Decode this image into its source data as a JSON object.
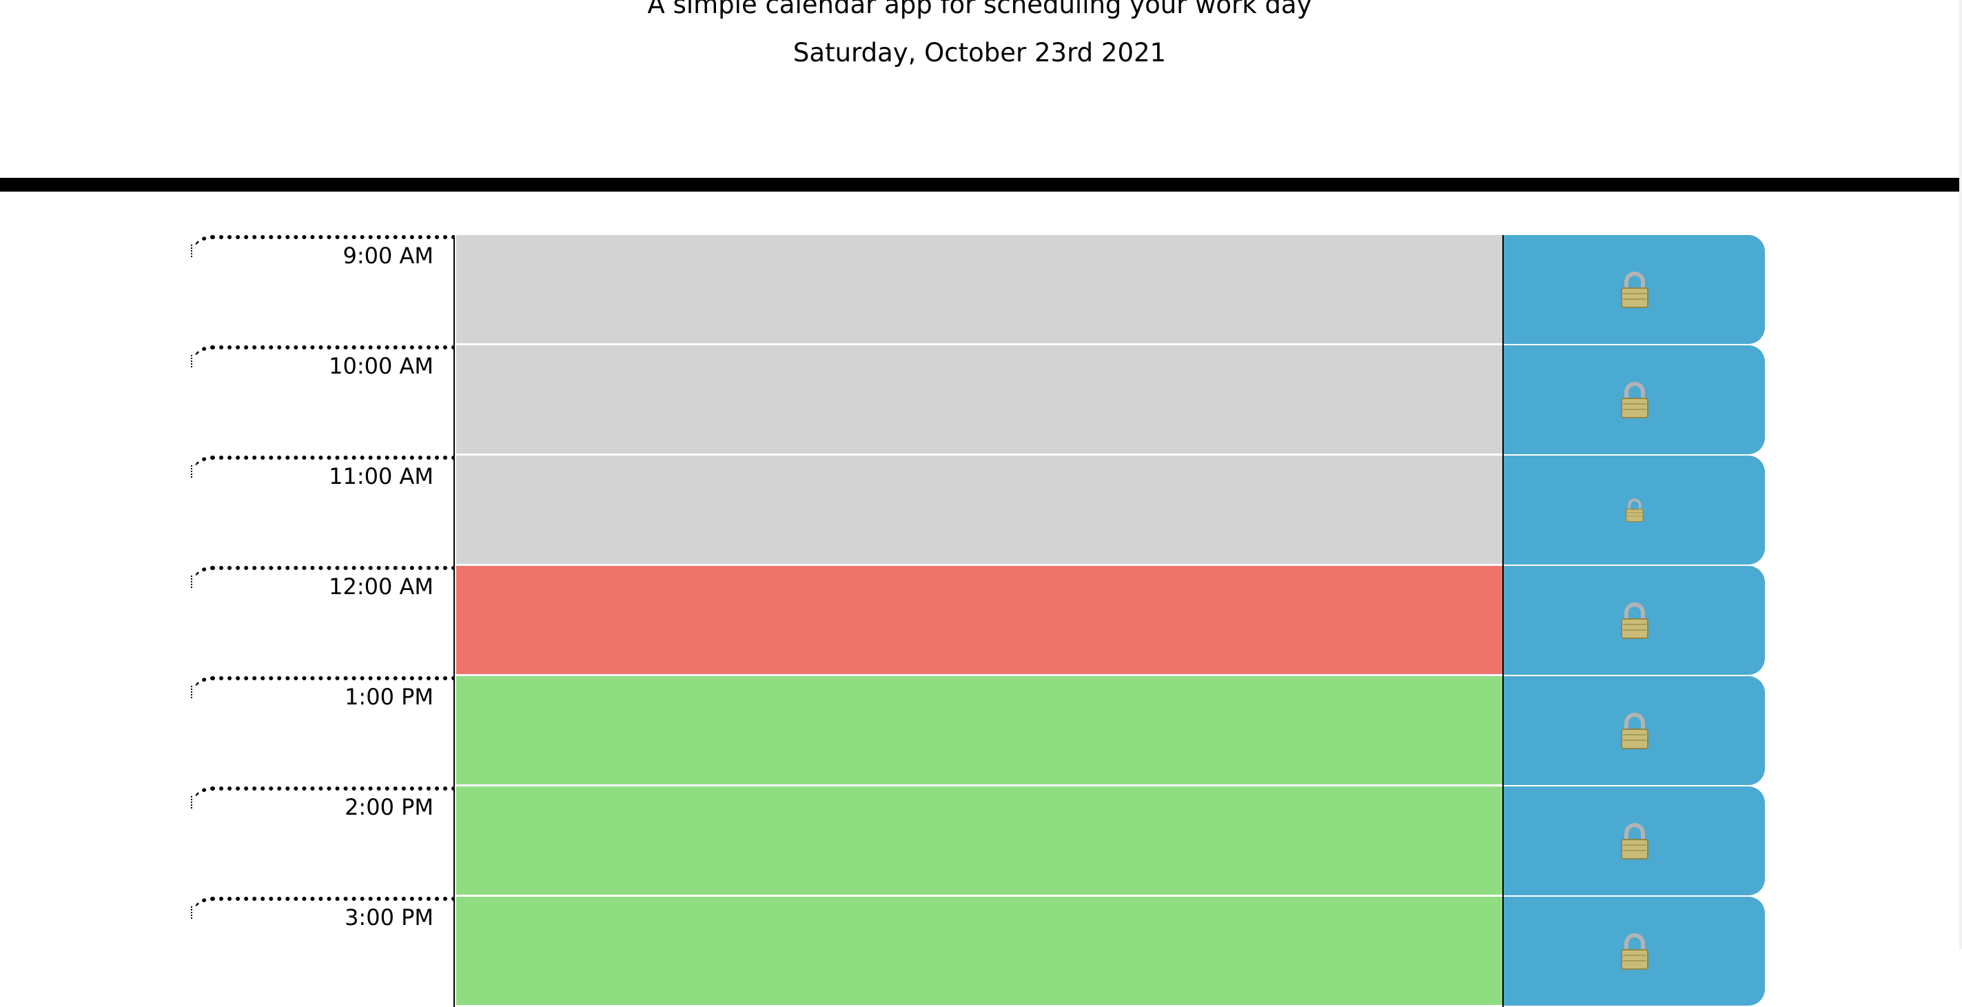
{
  "header": {
    "subtitle": "A simple calendar app for scheduling your work day",
    "current_day": "Saturday, October 23rd 2021"
  },
  "colors": {
    "past": "#d3d3d3",
    "present": "#ee736a",
    "future": "#90dc81",
    "save_button": "#4aaad2",
    "header_border": "#000000"
  },
  "timeblocks": [
    {
      "hour": "9:00 AM",
      "status": "past",
      "text": "",
      "icon": "lock-icon"
    },
    {
      "hour": "10:00 AM",
      "status": "past",
      "text": "",
      "icon": "lock-icon"
    },
    {
      "hour": "11:00 AM",
      "status": "past",
      "text": "",
      "icon": "lock-icon"
    },
    {
      "hour": "12:00 AM",
      "status": "present",
      "text": "",
      "icon": "lock-icon"
    },
    {
      "hour": "1:00 PM",
      "status": "future",
      "text": "",
      "icon": "lock-icon"
    },
    {
      "hour": "2:00 PM",
      "status": "future",
      "text": "",
      "icon": "lock-icon"
    },
    {
      "hour": "3:00 PM",
      "status": "future",
      "text": "",
      "icon": "lock-icon"
    }
  ]
}
